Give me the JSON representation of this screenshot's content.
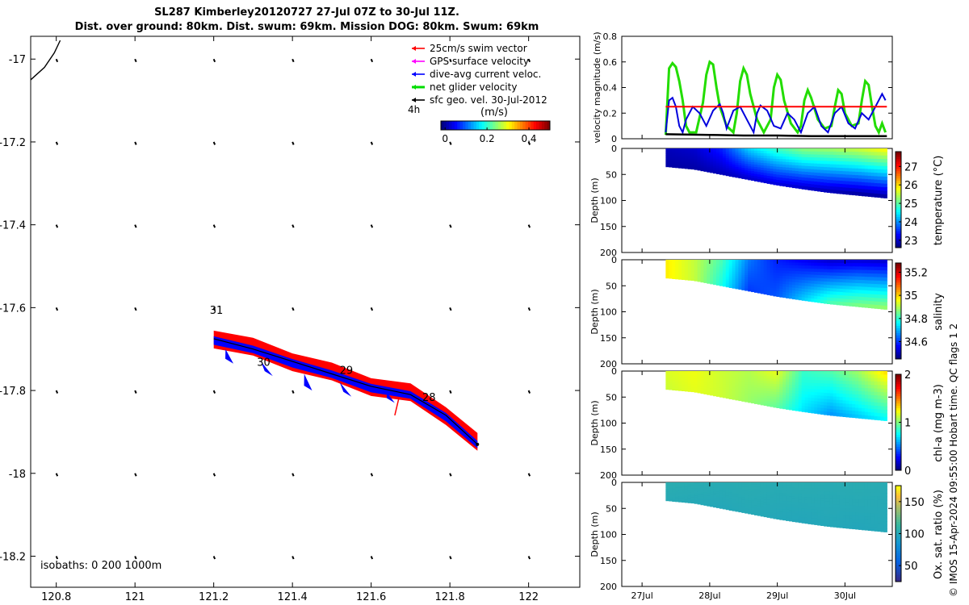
{
  "header": {
    "title_line1": "SL287 Kimberley20120727 27-Jul 07Z to 30-Jul 11Z.",
    "title_line2": "Dist. over ground: 80km. Dist. swum: 69km. Mission DOG: 80km. Swum: 69km"
  },
  "footer": {
    "credit": "© IMOS 15-Apr-2024 09:55:00 Hobart time. QC flags 1  2"
  },
  "chart_data": [
    {
      "type": "scatter",
      "title": "Glider track map",
      "x_ticks": [
        "120.8",
        "121",
        "121.2",
        "121.4",
        "121.6",
        "121.8",
        "122"
      ],
      "y_ticks": [
        "-17",
        "-17.2",
        "-17.4",
        "-17.6",
        "-17.8",
        "-18",
        "-18.2"
      ],
      "xlim": [
        120.735,
        122.13
      ],
      "ylim": [
        -18.275,
        -16.945
      ],
      "isobaths_label": "isobaths: 0   200  1000m",
      "legend": [
        {
          "label": "25cm/s swim vector",
          "color": "#ff0000"
        },
        {
          "label": "GPS surface velocity",
          "color": "#ff00ff"
        },
        {
          "label": "dive-avg current veloc.",
          "color": "#0000ff"
        },
        {
          "label": "net glider velocity",
          "color": "#00dd00"
        },
        {
          "label": "sfc geo. vel. 30-Jul-2012",
          "color": "#000000"
        }
      ],
      "scale_label": "4h",
      "colorbar": {
        "label": "(m/s)",
        "ticks": [
          "0",
          "0.2",
          "0.4"
        ],
        "range": [
          -0.02,
          0.5
        ]
      },
      "day_labels": [
        {
          "text": "31",
          "lon": 121.19,
          "lat": -17.615
        },
        {
          "text": "30",
          "lon": 121.31,
          "lat": -17.74
        },
        {
          "text": "29",
          "lon": 121.52,
          "lat": -17.76
        },
        {
          "text": "28",
          "lon": 121.73,
          "lat": -17.825
        }
      ],
      "track": [
        [
          121.2,
          -17.675
        ],
        [
          121.3,
          -17.7
        ],
        [
          121.4,
          -17.73
        ],
        [
          121.5,
          -17.76
        ],
        [
          121.6,
          -17.79
        ],
        [
          121.7,
          -17.81
        ],
        [
          121.79,
          -17.86
        ],
        [
          121.87,
          -17.93
        ]
      ],
      "grid_lons": [
        120.8,
        121.0,
        121.2,
        121.4,
        121.6,
        121.8,
        122.0
      ],
      "grid_lats": [
        -17.0,
        -17.2,
        -17.4,
        -17.6,
        -17.8,
        -18.0,
        -18.2
      ],
      "coastline": [
        [
          120.735,
          -17.05
        ],
        [
          120.77,
          -17.02
        ],
        [
          120.795,
          -16.985
        ],
        [
          120.81,
          -16.955
        ]
      ]
    },
    {
      "type": "line",
      "title": "velocity magnitude",
      "ylabel": "velocity magnitude (m/s)",
      "ylim": [
        0,
        0.8
      ],
      "y_ticks": [
        "0",
        "0.2",
        "0.4",
        "0.6",
        "0.8"
      ],
      "xlim": [
        26.7,
        30.7
      ],
      "series": [
        {
          "name": "net glider velocity",
          "color": "#22dd00",
          "x": [
            27.35,
            27.4,
            27.45,
            27.5,
            27.55,
            27.6,
            27.65,
            27.7,
            27.8,
            27.9,
            27.95,
            28.0,
            28.05,
            28.1,
            28.15,
            28.25,
            28.35,
            28.4,
            28.45,
            28.5,
            28.55,
            28.6,
            28.7,
            28.8,
            28.9,
            28.95,
            29.0,
            29.05,
            29.1,
            29.2,
            29.3,
            29.35,
            29.4,
            29.45,
            29.5,
            29.6,
            29.7,
            29.8,
            29.85,
            29.9,
            29.95,
            30.0,
            30.1,
            30.2,
            30.25,
            30.3,
            30.35,
            30.4,
            30.45,
            30.5,
            30.55,
            30.6
          ],
          "values": [
            0.03,
            0.55,
            0.59,
            0.56,
            0.45,
            0.3,
            0.1,
            0.05,
            0.05,
            0.28,
            0.5,
            0.6,
            0.58,
            0.4,
            0.25,
            0.1,
            0.05,
            0.2,
            0.45,
            0.55,
            0.5,
            0.35,
            0.15,
            0.05,
            0.15,
            0.4,
            0.5,
            0.46,
            0.3,
            0.12,
            0.05,
            0.1,
            0.3,
            0.38,
            0.32,
            0.15,
            0.08,
            0.1,
            0.25,
            0.38,
            0.35,
            0.2,
            0.1,
            0.12,
            0.3,
            0.45,
            0.42,
            0.25,
            0.1,
            0.05,
            0.12,
            0.05
          ]
        },
        {
          "name": "dive-avg current veloc.",
          "color": "#0000dd",
          "x": [
            27.35,
            27.4,
            27.45,
            27.5,
            27.55,
            27.6,
            27.65,
            27.75,
            27.85,
            27.95,
            28.05,
            28.15,
            28.2,
            28.25,
            28.35,
            28.45,
            28.55,
            28.65,
            28.7,
            28.75,
            28.85,
            28.95,
            29.05,
            29.15,
            29.25,
            29.35,
            29.45,
            29.55,
            29.65,
            29.75,
            29.85,
            29.95,
            30.05,
            30.15,
            30.25,
            30.35,
            30.45,
            30.55,
            30.6
          ],
          "values": [
            0.05,
            0.3,
            0.32,
            0.25,
            0.1,
            0.05,
            0.15,
            0.25,
            0.2,
            0.1,
            0.22,
            0.27,
            0.2,
            0.08,
            0.22,
            0.25,
            0.15,
            0.05,
            0.2,
            0.26,
            0.22,
            0.1,
            0.08,
            0.2,
            0.15,
            0.05,
            0.2,
            0.25,
            0.1,
            0.05,
            0.2,
            0.25,
            0.12,
            0.08,
            0.2,
            0.15,
            0.25,
            0.35,
            0.3
          ]
        },
        {
          "name": "25cm/s swim vector",
          "color": "#ff0000",
          "x": [
            27.35,
            30.62
          ],
          "values": [
            0.25,
            0.25
          ]
        },
        {
          "name": "sfc geo. vel.",
          "color": "#000000",
          "x": [
            27.35,
            28.0,
            28.5,
            29.0,
            29.5,
            30.0,
            30.62
          ],
          "values": [
            0.035,
            0.03,
            0.025,
            0.025,
            0.02,
            0.02,
            0.02
          ]
        }
      ]
    },
    {
      "type": "heatmap",
      "title": "temperature",
      "colorbar_label": "temperature (°C)",
      "colorbar_ticks": [
        "23",
        "24",
        "25",
        "26",
        "27"
      ],
      "range": [
        22.6,
        27.8
      ],
      "ylim": [
        0,
        200
      ],
      "y_ticks": [
        "0",
        "50",
        "100",
        "150",
        "200"
      ],
      "ylabel": "Depth (m)",
      "x_start": 27.35,
      "x_end": 30.62,
      "bottom_depth": [
        35,
        40,
        50,
        60,
        70,
        78,
        85,
        90,
        95
      ],
      "surface_values": [
        22.9,
        23.0,
        23.4,
        24.3,
        24.8,
        25.2,
        25.3,
        25.5,
        25.8
      ],
      "bottom_values": [
        22.8,
        22.8,
        22.9,
        23.0,
        23.1,
        23.0,
        22.9,
        22.8,
        22.8
      ]
    },
    {
      "type": "heatmap",
      "title": "salinity",
      "colorbar_label": "salinity",
      "colorbar_ticks": [
        "34.6",
        "34.8",
        "35",
        "35.2"
      ],
      "range": [
        34.45,
        35.28
      ],
      "ylim": [
        0,
        200
      ],
      "y_ticks": [
        "0",
        "50",
        "100",
        "150",
        "200"
      ],
      "ylabel": "Depth (m)",
      "x_start": 27.35,
      "x_end": 30.62,
      "bottom_depth": [
        35,
        40,
        50,
        60,
        70,
        78,
        85,
        90,
        95
      ],
      "surface_values": [
        34.98,
        34.92,
        34.82,
        34.65,
        34.58,
        34.55,
        34.52,
        34.53,
        34.52
      ],
      "bottom_values": [
        34.98,
        34.92,
        34.78,
        34.6,
        34.62,
        34.72,
        34.82,
        34.86,
        34.88
      ]
    },
    {
      "type": "heatmap",
      "title": "chl-a",
      "colorbar_label": "chl-a (mg m-3)",
      "colorbar_ticks": [
        "0",
        "1",
        "2"
      ],
      "range": [
        0,
        2
      ],
      "ylim": [
        0,
        200
      ],
      "y_ticks": [
        "0",
        "50",
        "100",
        "150",
        "200"
      ],
      "ylabel": "Depth (m)",
      "x_start": 27.35,
      "x_end": 30.62,
      "bottom_depth": [
        35,
        40,
        50,
        60,
        70,
        78,
        85,
        90,
        95
      ],
      "surface_values": [
        1.18,
        1.22,
        1.15,
        1.1,
        1.2,
        0.85,
        0.9,
        1.05,
        1.3
      ],
      "bottom_values": [
        1.15,
        1.2,
        1.15,
        1.05,
        0.95,
        0.7,
        0.55,
        0.65,
        0.75
      ]
    },
    {
      "type": "heatmap",
      "title": "oxygen saturation",
      "colorbar_label": "Ox. sat. ratio (%)",
      "colorbar_ticks": [
        "50",
        "100",
        "150"
      ],
      "range": [
        25,
        175
      ],
      "ylim": [
        0,
        200
      ],
      "y_ticks": [
        "0",
        "50",
        "100",
        "150",
        "200"
      ],
      "ylabel": "Depth (m)",
      "x_start": 27.35,
      "x_end": 30.62,
      "bottom_depth": [
        35,
        40,
        50,
        60,
        70,
        78,
        85,
        90,
        95
      ],
      "surface_values": [
        105,
        104,
        103,
        104,
        103,
        104,
        103,
        104,
        103
      ],
      "bottom_values": [
        102,
        101,
        100,
        101,
        100,
        99,
        100,
        99,
        100
      ]
    }
  ],
  "time_axis": {
    "ticks": [
      "27Jul",
      "28Jul",
      "29Jul",
      "30Jul"
    ],
    "tick_days": [
      27,
      28,
      29,
      30
    ]
  }
}
